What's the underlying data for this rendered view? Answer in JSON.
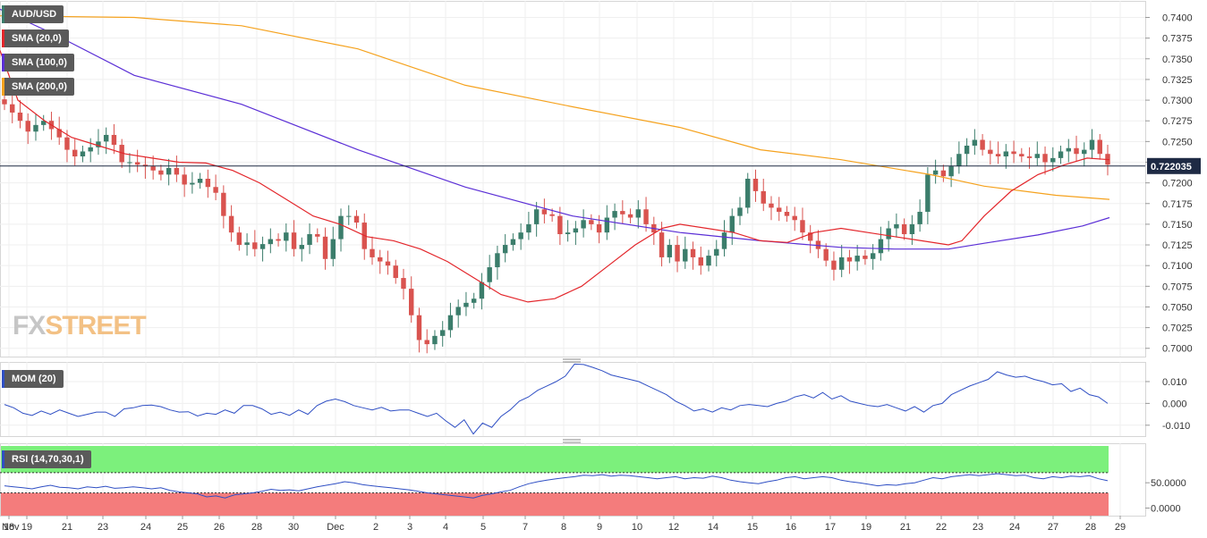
{
  "legend": {
    "symbol": "AUD/USD",
    "sma20": "SMA (20,0)",
    "sma100": "SMA (100,0)",
    "sma200": "SMA (200,0)",
    "mom": "MOM (20)",
    "rsi": "RSI (14,70,30,1)"
  },
  "watermark": {
    "fx": "FX",
    "street": "STREET"
  },
  "colors": {
    "bull": "#3b7d6b",
    "bear": "#d9534f",
    "sma20": "#e3262b",
    "sma100": "#5b2fd6",
    "sma200": "#f5a21e",
    "indicator": "#2f4fc4",
    "rsi_overbought": "#7cf07c",
    "rsi_oversold": "#f47c7c"
  },
  "chart_data": [
    {
      "type": "candlestick",
      "title": "AUD/USD",
      "last_price": "0.722035",
      "ylim": [
        0.699,
        0.742
      ],
      "y_ticks": [
        "0.7400",
        "0.7375",
        "0.7350",
        "0.7325",
        "0.7300",
        "0.7275",
        "0.7250",
        "0.7225",
        "0.7200",
        "0.7175",
        "0.7150",
        "0.7125",
        "0.7100",
        "0.7075",
        "0.7050",
        "0.7025",
        "0.7000"
      ],
      "x_ticks": [
        "Nov",
        "18",
        "19",
        "21",
        "23",
        "24",
        "25",
        "26",
        "28",
        "30",
        "Dec",
        "2",
        "3",
        "4",
        "5",
        "7",
        "8",
        "9",
        "10",
        "12",
        "14",
        "15",
        "16",
        "17",
        "19",
        "21",
        "22",
        "23",
        "24",
        "27",
        "28",
        "29"
      ],
      "close_series": [
        0.7295,
        0.7285,
        0.7275,
        0.7262,
        0.727,
        0.7275,
        0.7265,
        0.7255,
        0.724,
        0.7232,
        0.7238,
        0.7243,
        0.725,
        0.7258,
        0.7246,
        0.7225,
        0.7225,
        0.7222,
        0.722,
        0.7215,
        0.721,
        0.7218,
        0.721,
        0.7198,
        0.72,
        0.7205,
        0.7195,
        0.7188,
        0.716,
        0.714,
        0.7125,
        0.7128,
        0.712,
        0.7126,
        0.7132,
        0.713,
        0.714,
        0.712,
        0.7125,
        0.7138,
        0.7135,
        0.7108,
        0.7132,
        0.716,
        0.716,
        0.7152,
        0.712,
        0.711,
        0.7105,
        0.71,
        0.7085,
        0.7072,
        0.704,
        0.701,
        0.7005,
        0.7015,
        0.7022,
        0.704,
        0.705,
        0.7055,
        0.706,
        0.708,
        0.7098,
        0.7115,
        0.7125,
        0.7132,
        0.714,
        0.715,
        0.7168,
        0.7162,
        0.716,
        0.7138,
        0.714,
        0.7145,
        0.7155,
        0.715,
        0.714,
        0.7158,
        0.7166,
        0.7162,
        0.7158,
        0.7168,
        0.715,
        0.714,
        0.711,
        0.7125,
        0.7105,
        0.712,
        0.711,
        0.71,
        0.7112,
        0.712,
        0.714,
        0.716,
        0.717,
        0.7205,
        0.719,
        0.7175,
        0.717,
        0.7165,
        0.716,
        0.7155,
        0.714,
        0.713,
        0.712,
        0.7106,
        0.7095,
        0.711,
        0.7105,
        0.7112,
        0.7108,
        0.7115,
        0.7132,
        0.7145,
        0.715,
        0.7138,
        0.715,
        0.7165,
        0.721,
        0.7215,
        0.7208,
        0.722,
        0.7235,
        0.7245,
        0.7252,
        0.724,
        0.7235,
        0.7232,
        0.7238,
        0.7235,
        0.7232,
        0.723,
        0.7235,
        0.7225,
        0.723,
        0.7238,
        0.7242,
        0.7235,
        0.724,
        0.7252,
        0.7235,
        0.7222
      ],
      "sma20": [
        [
          0,
          0.736
        ],
        [
          20,
          0.73
        ],
        [
          50,
          0.7275
        ],
        [
          80,
          0.7255
        ],
        [
          110,
          0.7245
        ],
        [
          140,
          0.7235
        ],
        [
          170,
          0.723
        ],
        [
          200,
          0.7225
        ],
        [
          230,
          0.7224
        ],
        [
          260,
          0.7215
        ],
        [
          290,
          0.72
        ],
        [
          320,
          0.718
        ],
        [
          350,
          0.716
        ],
        [
          380,
          0.715
        ],
        [
          410,
          0.7135
        ],
        [
          440,
          0.713
        ],
        [
          470,
          0.712
        ],
        [
          500,
          0.7105
        ],
        [
          530,
          0.7085
        ],
        [
          560,
          0.7065
        ],
        [
          590,
          0.7056
        ],
        [
          620,
          0.706
        ],
        [
          650,
          0.7075
        ],
        [
          680,
          0.71
        ],
        [
          710,
          0.7125
        ],
        [
          740,
          0.7145
        ],
        [
          760,
          0.715
        ],
        [
          790,
          0.7145
        ],
        [
          820,
          0.714
        ],
        [
          850,
          0.713
        ],
        [
          880,
          0.7128
        ],
        [
          910,
          0.714
        ],
        [
          940,
          0.7145
        ],
        [
          970,
          0.714
        ],
        [
          1000,
          0.7135
        ],
        [
          1030,
          0.713
        ],
        [
          1060,
          0.7125
        ],
        [
          1075,
          0.713
        ],
        [
          1100,
          0.716
        ],
        [
          1130,
          0.719
        ],
        [
          1160,
          0.721
        ],
        [
          1190,
          0.7222
        ],
        [
          1215,
          0.723
        ],
        [
          1240,
          0.7228
        ]
      ],
      "sma100": [
        [
          0,
          0.741
        ],
        [
          60,
          0.738
        ],
        [
          150,
          0.733
        ],
        [
          270,
          0.7295
        ],
        [
          400,
          0.724
        ],
        [
          520,
          0.7195
        ],
        [
          640,
          0.716
        ],
        [
          760,
          0.714
        ],
        [
          850,
          0.713
        ],
        [
          940,
          0.7122
        ],
        [
          1000,
          0.712
        ],
        [
          1060,
          0.712
        ],
        [
          1100,
          0.7127
        ],
        [
          1160,
          0.7137
        ],
        [
          1210,
          0.7148
        ],
        [
          1240,
          0.7158
        ]
      ],
      "sma200": [
        [
          0,
          0.7402
        ],
        [
          150,
          0.74
        ],
        [
          270,
          0.739
        ],
        [
          400,
          0.7362
        ],
        [
          520,
          0.7318
        ],
        [
          640,
          0.7292
        ],
        [
          760,
          0.7267
        ],
        [
          850,
          0.724
        ],
        [
          940,
          0.7228
        ],
        [
          1040,
          0.721
        ],
        [
          1100,
          0.7196
        ],
        [
          1180,
          0.7185
        ],
        [
          1240,
          0.718
        ]
      ]
    },
    {
      "type": "line",
      "title": "MOM (20)",
      "ylim": [
        -0.015,
        0.019
      ],
      "y_ticks": [
        "0.010",
        "0.000",
        "-0.010"
      ],
      "values": [
        -0.0005,
        -0.002,
        -0.0045,
        -0.0055,
        -0.0035,
        -0.005,
        -0.003,
        -0.0045,
        -0.006,
        -0.005,
        -0.004,
        -0.004,
        -0.006,
        -0.0025,
        -0.002,
        -0.001,
        -0.0008,
        -0.0015,
        -0.003,
        -0.004,
        -0.0038,
        -0.0058,
        -0.0045,
        -0.005,
        -0.003,
        -0.0045,
        -0.001,
        -0.001,
        -0.0025,
        -0.005,
        -0.004,
        -0.0055,
        -0.003,
        -0.005,
        -0.001,
        0.001,
        0.002,
        0.0008,
        -0.001,
        -0.002,
        -0.003,
        -0.0018,
        -0.0035,
        -0.003,
        -0.003,
        -0.0045,
        -0.006,
        -0.0045,
        -0.008,
        -0.011,
        -0.0075,
        -0.014,
        -0.009,
        -0.011,
        -0.006,
        -0.003,
        0.001,
        0.003,
        0.006,
        0.008,
        0.01,
        0.0125,
        0.018,
        0.0178,
        0.0165,
        0.015,
        0.013,
        0.012,
        0.011,
        0.01,
        0.008,
        0.006,
        0.004,
        0.001,
        -0.001,
        -0.0035,
        -0.0025,
        -0.004,
        -0.002,
        -0.003,
        -0.001,
        -0.0005,
        -0.001,
        -0.0015,
        0.0,
        0.001,
        0.003,
        0.004,
        0.0025,
        0.005,
        0.002,
        0.0035,
        0.001,
        0.0,
        -0.001,
        -0.0015,
        -0.0005,
        -0.002,
        -0.0035,
        -0.0015,
        -0.004,
        -0.001,
        0.0,
        0.004,
        0.006,
        0.008,
        0.0095,
        0.011,
        0.0145,
        0.013,
        0.012,
        0.0125,
        0.011,
        0.01,
        0.0085,
        0.009,
        0.0055,
        0.007,
        0.004,
        0.003,
        0.0
      ]
    },
    {
      "type": "line",
      "title": "RSI (14,70,30,1)",
      "ylim": [
        -15,
        128
      ],
      "y_ticks": [
        "50.0000",
        "0.0000"
      ],
      "overbought": 70,
      "oversold": 30,
      "values": [
        44,
        42,
        40,
        38,
        42,
        45,
        41,
        40,
        38,
        42,
        40,
        43,
        39,
        40,
        42,
        40,
        38,
        40,
        35,
        32,
        30,
        28,
        22,
        24,
        20,
        26,
        28,
        30,
        33,
        37,
        35,
        36,
        34,
        38,
        42,
        45,
        48,
        52,
        50,
        46,
        44,
        42,
        40,
        38,
        36,
        33,
        30,
        28,
        26,
        24,
        22,
        20,
        25,
        28,
        32,
        35,
        42,
        48,
        52,
        55,
        58,
        60,
        62,
        65,
        64,
        66,
        63,
        65,
        64,
        62,
        60,
        58,
        60,
        62,
        58,
        60,
        59,
        63,
        60,
        55,
        52,
        50,
        48,
        52,
        55,
        60,
        62,
        58,
        60,
        62,
        60,
        55,
        52,
        50,
        47,
        44,
        46,
        45,
        48,
        50,
        55,
        60,
        58,
        62,
        64,
        66,
        64,
        66,
        68,
        66,
        64,
        65,
        60,
        58,
        62,
        60,
        63,
        62,
        64,
        58,
        54
      ]
    }
  ]
}
